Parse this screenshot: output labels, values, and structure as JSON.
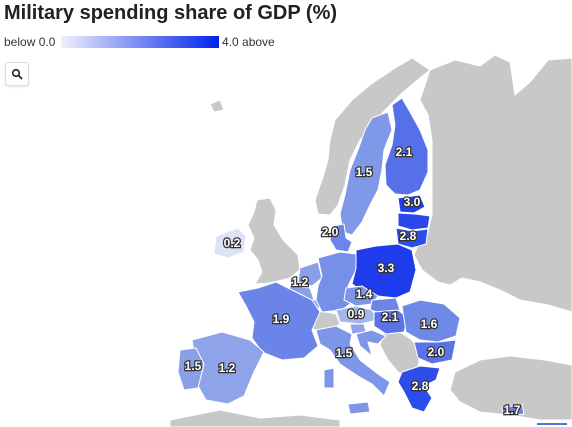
{
  "title": "Military spending share of GDP (%)",
  "legend": {
    "low_label": "below 0.0",
    "high_label": "4.0 above",
    "color_low": "#e8ecf8",
    "color_high": "#0022ee"
  },
  "search_button": {
    "icon": "search-icon"
  },
  "colors": {
    "land_nodata": "#c8c8c8",
    "sea": "#ffffff",
    "border": "#ffffff"
  },
  "countries": [
    {
      "id": "finland",
      "value": "2.1"
    },
    {
      "id": "sweden",
      "value": "1.5"
    },
    {
      "id": "estonia",
      "value": "3.0"
    },
    {
      "id": "latvia",
      "value": ""
    },
    {
      "id": "lithuania",
      "value": "2.8"
    },
    {
      "id": "denmark",
      "value": "2.0"
    },
    {
      "id": "ireland",
      "value": "0.2"
    },
    {
      "id": "netherlands",
      "value": "1.2"
    },
    {
      "id": "belgium",
      "value": ""
    },
    {
      "id": "germany",
      "value": "1.6"
    },
    {
      "id": "poland",
      "value": "3.3"
    },
    {
      "id": "czechia",
      "value": "1.4"
    },
    {
      "id": "slovakia",
      "value": ""
    },
    {
      "id": "austria",
      "value": "0.9"
    },
    {
      "id": "hungary",
      "value": "2.1"
    },
    {
      "id": "romania",
      "value": "1.6"
    },
    {
      "id": "bulgaria",
      "value": "2.0"
    },
    {
      "id": "france",
      "value": "1.9"
    },
    {
      "id": "italy",
      "value": "1.5"
    },
    {
      "id": "spain",
      "value": "1.2"
    },
    {
      "id": "portugal",
      "value": "1.5"
    },
    {
      "id": "greece",
      "value": "2.8"
    },
    {
      "id": "croatia",
      "value": ""
    },
    {
      "id": "slovenia",
      "value": ""
    },
    {
      "id": "cyprus",
      "value": "1.7"
    },
    {
      "id": "luxembourg",
      "value": ""
    }
  ]
}
